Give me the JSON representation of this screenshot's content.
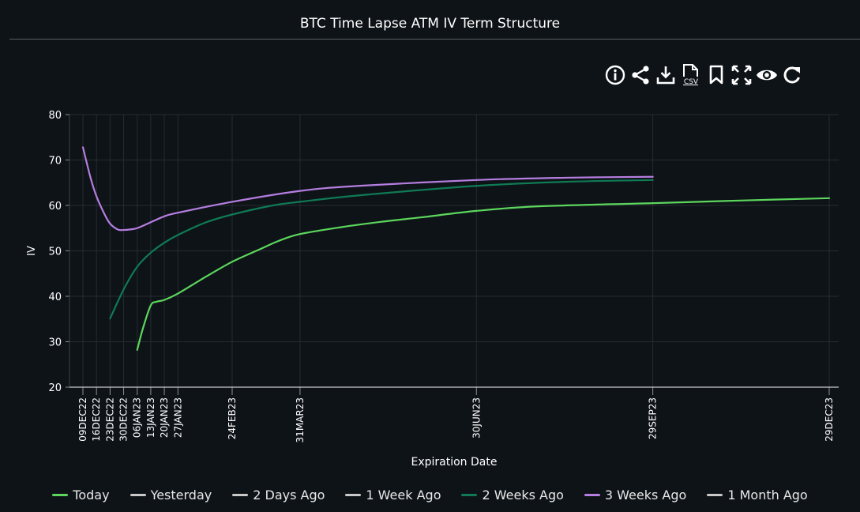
{
  "title": "BTC Time Lapse ATM IV Term Structure",
  "toolbar": [
    {
      "name": "info-icon",
      "label": ""
    },
    {
      "name": "share-icon",
      "label": ""
    },
    {
      "name": "download-icon",
      "label": ""
    },
    {
      "name": "csv-icon",
      "label": "CSV"
    },
    {
      "name": "bookmark-icon",
      "label": ""
    },
    {
      "name": "fullscreen-icon",
      "label": ""
    },
    {
      "name": "eye-icon",
      "label": ""
    },
    {
      "name": "refresh-icon",
      "label": ""
    }
  ],
  "chart_data": {
    "type": "line",
    "title": "BTC Time Lapse ATM IV Term Structure",
    "xlabel": "Expiration Date",
    "ylabel": "IV",
    "ylim": [
      20,
      80
    ],
    "yticks": [
      20,
      30,
      40,
      50,
      60,
      70,
      80
    ],
    "x_ticks": [
      {
        "label": "09DEC22",
        "date": "2022-12-09"
      },
      {
        "label": "16DEC22",
        "date": "2022-12-16"
      },
      {
        "label": "23DEC22",
        "date": "2022-12-23"
      },
      {
        "label": "30DEC22",
        "date": "2022-12-30"
      },
      {
        "label": "06JAN23",
        "date": "2023-01-06"
      },
      {
        "label": "13JAN23",
        "date": "2023-01-13"
      },
      {
        "label": "20JAN23",
        "date": "2023-01-20"
      },
      {
        "label": "27JAN23",
        "date": "2023-01-27"
      },
      {
        "label": "24FEB23",
        "date": "2023-02-24"
      },
      {
        "label": "31MAR23",
        "date": "2023-03-31"
      },
      {
        "label": "30JUN23",
        "date": "2023-06-30"
      },
      {
        "label": "29SEP23",
        "date": "2023-09-29"
      },
      {
        "label": "29DEC23",
        "date": "2023-12-29"
      }
    ],
    "xlim": [
      "2022-12-09",
      "2023-12-29"
    ],
    "grid": true,
    "legend_position": "bottom",
    "series": [
      {
        "name": "Today",
        "color": "#5cd65c",
        "points": [
          [
            "2023-01-06",
            28.2
          ],
          [
            "2023-01-09",
            33
          ],
          [
            "2023-01-13",
            38.0
          ],
          [
            "2023-01-16",
            38.8
          ],
          [
            "2023-01-20",
            39.2
          ],
          [
            "2023-01-27",
            40.6
          ],
          [
            "2023-02-10",
            44.2
          ],
          [
            "2023-02-24",
            47.6
          ],
          [
            "2023-03-10",
            50.3
          ],
          [
            "2023-03-20",
            52.2
          ],
          [
            "2023-03-31",
            53.7
          ],
          [
            "2023-04-21",
            55.2
          ],
          [
            "2023-05-12",
            56.4
          ],
          [
            "2023-06-02",
            57.4
          ],
          [
            "2023-06-30",
            58.8
          ],
          [
            "2023-08-01",
            59.8
          ],
          [
            "2023-09-29",
            60.5
          ],
          [
            "2023-11-15",
            61.1
          ],
          [
            "2023-12-29",
            61.6
          ]
        ],
        "visible": true
      },
      {
        "name": "Yesterday",
        "color": "#c9c9c9",
        "points": [],
        "visible": false
      },
      {
        "name": "2 Days Ago",
        "color": "#c9c9c9",
        "points": [],
        "visible": false
      },
      {
        "name": "1 Week Ago",
        "color": "#c9c9c9",
        "points": [],
        "visible": false
      },
      {
        "name": "2 Weeks Ago",
        "color": "#0f7a54",
        "points": [
          [
            "2022-12-23",
            35.1
          ],
          [
            "2022-12-30",
            41.5
          ],
          [
            "2023-01-06",
            46.5
          ],
          [
            "2023-01-13",
            49.6
          ],
          [
            "2023-01-20",
            51.8
          ],
          [
            "2023-01-27",
            53.5
          ],
          [
            "2023-02-10",
            56.2
          ],
          [
            "2023-02-24",
            58.0
          ],
          [
            "2023-03-17",
            60.0
          ],
          [
            "2023-03-31",
            60.8
          ],
          [
            "2023-04-30",
            62.2
          ],
          [
            "2023-06-30",
            64.3
          ],
          [
            "2023-08-15",
            65.2
          ],
          [
            "2023-09-29",
            65.6
          ]
        ],
        "visible": true
      },
      {
        "name": "3 Weeks Ago",
        "color": "#b57ee0",
        "points": [
          [
            "2022-12-09",
            72.8
          ],
          [
            "2022-12-13",
            66
          ],
          [
            "2022-12-16",
            62
          ],
          [
            "2022-12-20",
            58.2
          ],
          [
            "2022-12-23",
            56.0
          ],
          [
            "2022-12-27",
            54.7
          ],
          [
            "2022-12-30",
            54.6
          ],
          [
            "2023-01-02",
            54.7
          ],
          [
            "2023-01-06",
            55.0
          ],
          [
            "2023-01-13",
            56.3
          ],
          [
            "2023-01-20",
            57.6
          ],
          [
            "2023-01-27",
            58.4
          ],
          [
            "2023-02-24",
            60.8
          ],
          [
            "2023-03-31",
            63.2
          ],
          [
            "2023-04-30",
            64.3
          ],
          [
            "2023-06-30",
            65.6
          ],
          [
            "2023-08-15",
            66.1
          ],
          [
            "2023-09-29",
            66.3
          ]
        ],
        "visible": true
      },
      {
        "name": "1 Month Ago",
        "color": "#c9c9c9",
        "points": [],
        "visible": false
      }
    ]
  }
}
